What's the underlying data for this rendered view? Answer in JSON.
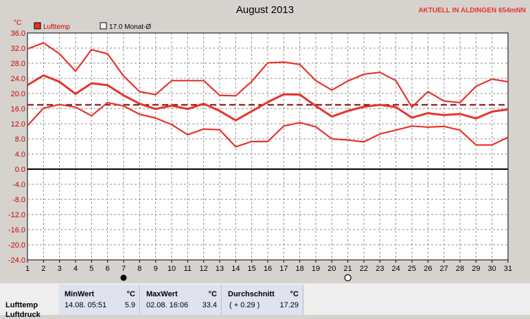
{
  "header": {
    "title": "August 2013",
    "station": "AKTUELL IN ALDINGEN 654mNN",
    "unit": "°C"
  },
  "legend": {
    "series_label": "Lufttemp",
    "reference_label": "17.0 Monat-Ø"
  },
  "colors": {
    "series": "#e8322c",
    "reference": "#800000",
    "zero": "#000000",
    "grid": "#8c8c8c",
    "plot_bg": "#ffffff",
    "axis_text": "#cc0000"
  },
  "moon_phases": [
    {
      "day": 7,
      "icon": "full-moon-icon"
    },
    {
      "day": 21,
      "icon": "new-moon-icon"
    }
  ],
  "chart_data": {
    "type": "line",
    "title": "August 2013",
    "ylabel": "°C",
    "x": [
      1,
      2,
      3,
      4,
      5,
      6,
      7,
      8,
      9,
      10,
      11,
      12,
      13,
      14,
      15,
      16,
      17,
      18,
      19,
      20,
      21,
      22,
      23,
      24,
      25,
      26,
      27,
      28,
      29,
      30,
      31
    ],
    "xlim": [
      1,
      31
    ],
    "ylim": [
      -24,
      36
    ],
    "yticks": [
      36,
      32,
      28,
      24,
      20,
      16,
      12,
      8,
      4,
      0,
      -4,
      -8,
      -12,
      -16,
      -20,
      -24
    ],
    "ytick_labels": [
      "36.0",
      "32.0",
      "28.0",
      "24.0",
      "20.0",
      "16.0",
      "12.0",
      "8.0",
      "4.0",
      "0.0",
      "-4.0",
      "-8.0",
      "-12.0",
      "-16.0",
      "-20.0",
      "-24.0"
    ],
    "grid": true,
    "legend_position": "top-left",
    "series": [
      {
        "name": "Lufttemp",
        "values": [
          31.8,
          33.4,
          30.5,
          25.9,
          31.6,
          30.5,
          24.6,
          20.5,
          19.7,
          23.4,
          23.4,
          23.4,
          19.5,
          19.4,
          23.2,
          28.1,
          28.3,
          27.7,
          23.4,
          20.9,
          23.3,
          25.1,
          25.6,
          23.4,
          16.4,
          20.5,
          18.0,
          17.6,
          21.9,
          23.8,
          23.1
        ]
      },
      {
        "values": [
          22.2,
          24.8,
          23.1,
          19.9,
          22.7,
          22.2,
          19.5,
          17.3,
          15.9,
          16.8,
          15.9,
          17.3,
          15.4,
          12.9,
          15.3,
          17.7,
          19.8,
          19.7,
          16.7,
          13.9,
          15.4,
          16.5,
          17.0,
          16.4,
          13.6,
          14.8,
          14.3,
          14.6,
          13.4,
          15.2,
          15.8
        ]
      },
      {
        "values": [
          11.5,
          16.1,
          17.1,
          16.4,
          14.1,
          17.6,
          16.7,
          14.5,
          13.5,
          11.8,
          9.1,
          10.6,
          10.4,
          5.9,
          7.3,
          7.3,
          11.4,
          12.3,
          11.2,
          8.0,
          7.7,
          7.2,
          9.3,
          10.3,
          11.4,
          11.1,
          11.3,
          10.3,
          6.4,
          6.4,
          8.4
        ]
      }
    ],
    "reference": {
      "name": "17.0 Monat-Ø",
      "value": 17.0
    }
  },
  "stats": {
    "row_label": "Lufttemp",
    "row2_label": "Luftdruck",
    "min": {
      "label": "MinWert",
      "unit": "°C",
      "datetime": "14.08.  05:51",
      "value": "5.9"
    },
    "max": {
      "label": "MaxWert",
      "unit": "°C",
      "datetime": "02.08.  16:06",
      "value": "33.4"
    },
    "avg": {
      "label": "Durchschnitt",
      "unit": "°C",
      "delta": "( + 0.29 )",
      "value": "17.29"
    }
  }
}
